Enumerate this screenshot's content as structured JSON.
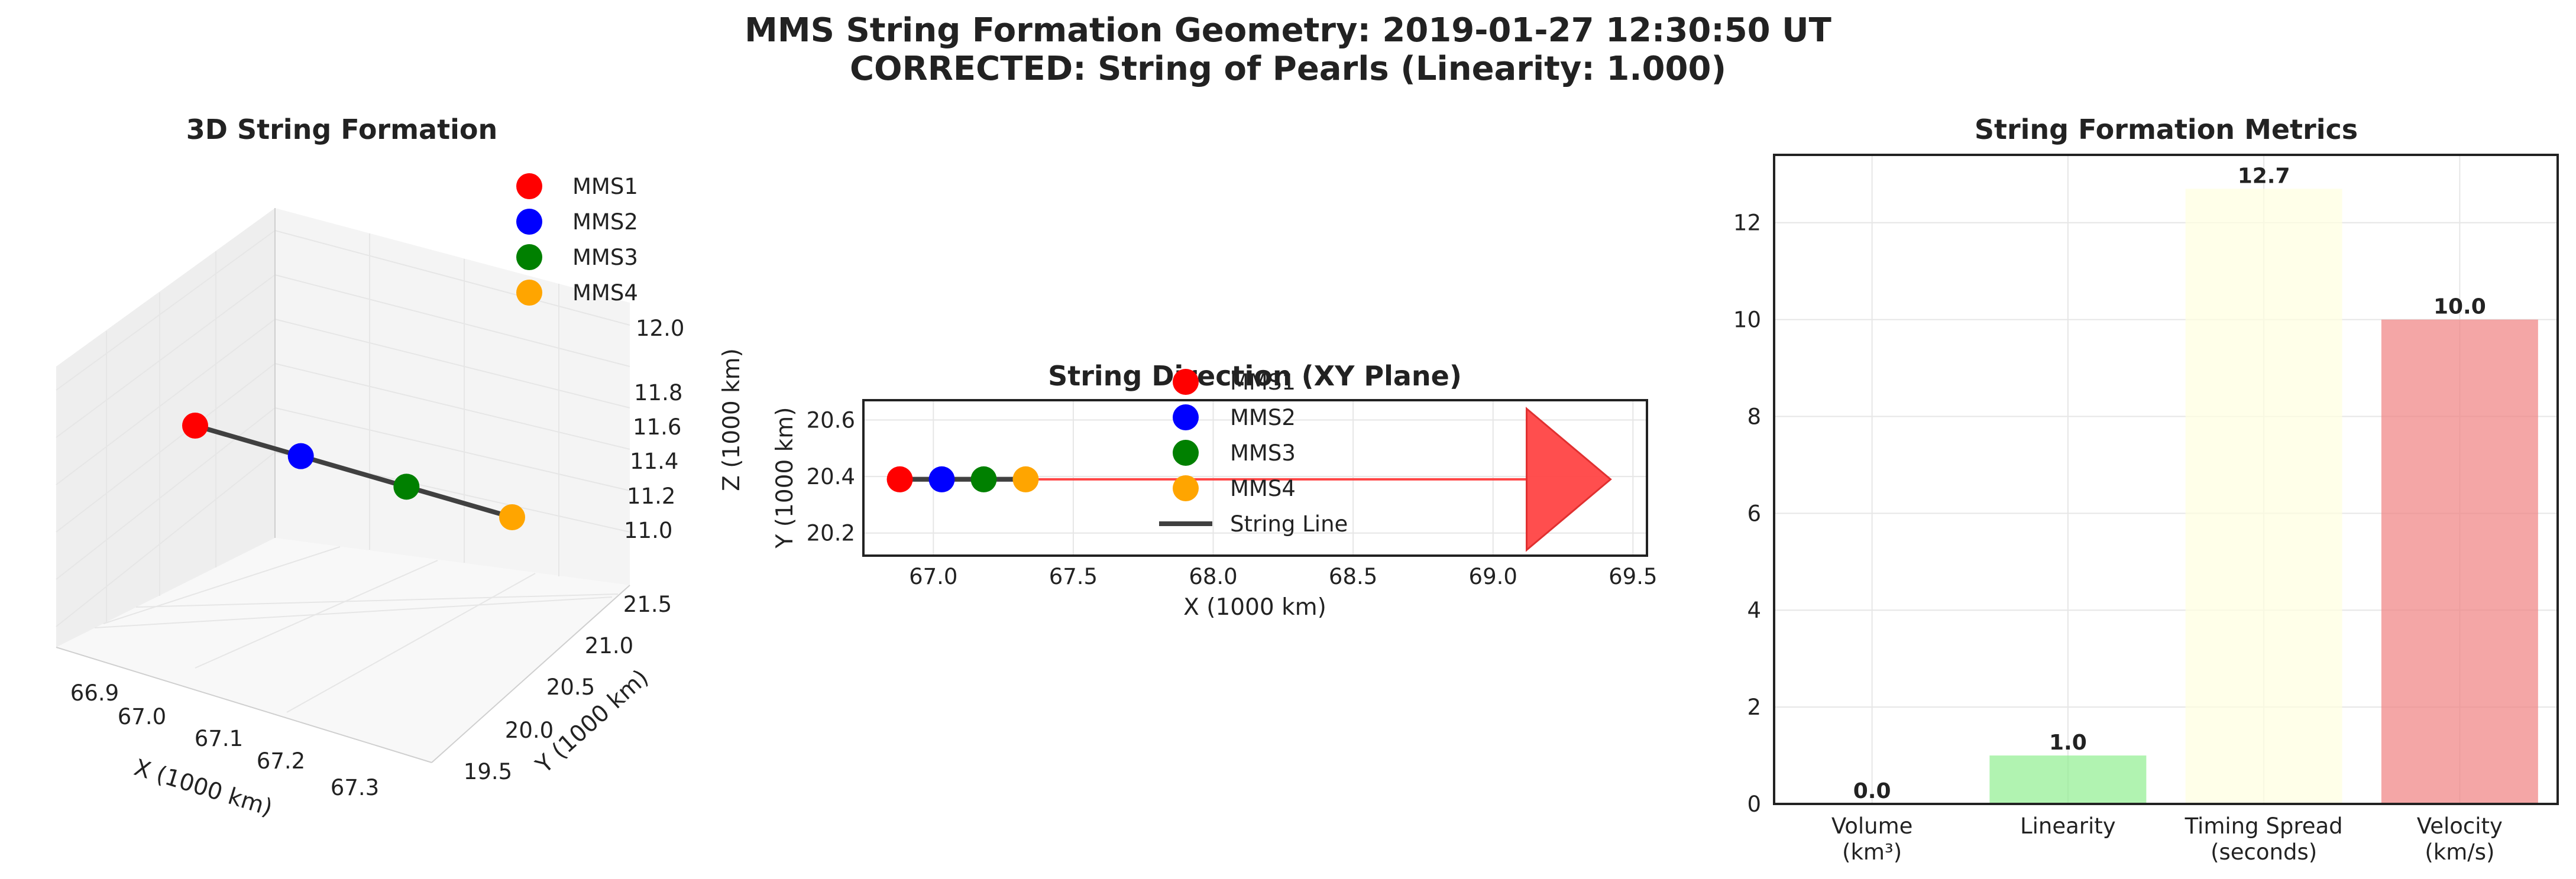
{
  "figure": {
    "title_line1": "MMS String Formation Geometry: 2019-01-27 12:30:50 UT",
    "title_line2": "CORRECTED: String of Pearls (Linearity: 1.000)"
  },
  "colors": {
    "MMS1": "#ff0000",
    "MMS2": "#0000ff",
    "MMS3": "#008000",
    "MMS4": "#ffa500",
    "string": "#404040",
    "arrow": "#ff4444"
  },
  "chart_data": [
    {
      "type": "scatter3d",
      "title": "3D String Formation",
      "xlabel": "X (1000 km)",
      "ylabel": "Y (1000 km)",
      "zlabel": "Z (1000 km)",
      "xlim": [
        66.85,
        67.38
      ],
      "ylim": [
        19.3,
        21.6
      ],
      "zlim": [
        10.9,
        12.05
      ],
      "xticks": [
        "66.9",
        "67.0",
        "67.1",
        "67.2",
        "67.3"
      ],
      "yticks": [
        "19.5",
        "20.0",
        "20.5",
        "21.0",
        "21.5"
      ],
      "zticks": [
        "11.0",
        "11.2",
        "11.4",
        "11.6",
        "11.8",
        "12.0"
      ],
      "legend": [
        "MMS1",
        "MMS2",
        "MMS3",
        "MMS4"
      ],
      "series": [
        {
          "name": "MMS1",
          "x": 66.88,
          "y": 20.39,
          "z": 11.45
        },
        {
          "name": "MMS2",
          "x": 67.03,
          "y": 20.39,
          "z": 11.42
        },
        {
          "name": "MMS3",
          "x": 67.18,
          "y": 20.39,
          "z": 11.39
        },
        {
          "name": "MMS4",
          "x": 67.33,
          "y": 20.39,
          "z": 11.36
        }
      ]
    },
    {
      "type": "scatter",
      "title": "String Direction (XY Plane)",
      "xlabel": "X (1000 km)",
      "ylabel": "Y (1000 km)",
      "xlim": [
        66.75,
        69.55
      ],
      "ylim": [
        20.12,
        20.67
      ],
      "xticks": [
        67.0,
        67.5,
        68.0,
        68.5,
        69.0,
        69.5
      ],
      "xtick_labels": [
        "67.0",
        "67.5",
        "68.0",
        "68.5",
        "69.0",
        "69.5"
      ],
      "yticks": [
        20.2,
        20.4,
        20.6
      ],
      "ytick_labels": [
        "20.2",
        "20.4",
        "20.6"
      ],
      "legend": [
        "MMS1",
        "MMS2",
        "MMS3",
        "MMS4",
        "String Line"
      ],
      "series": [
        {
          "name": "MMS1",
          "x": 66.88,
          "y": 20.39
        },
        {
          "name": "MMS2",
          "x": 67.03,
          "y": 20.39
        },
        {
          "name": "MMS3",
          "x": 67.18,
          "y": 20.39
        },
        {
          "name": "MMS4",
          "x": 67.33,
          "y": 20.39
        }
      ],
      "string_line": {
        "x": [
          66.88,
          67.33
        ],
        "y": [
          20.39,
          20.39
        ]
      },
      "arrow": {
        "x_start": 66.88,
        "x_end": 69.42,
        "y": 20.39,
        "head_start": 69.12,
        "head_half_height": 0.25
      }
    },
    {
      "type": "bar",
      "title": "String Formation Metrics",
      "categories": [
        "Volume\n(km³)",
        "Linearity",
        "Timing Spread\n(seconds)",
        "Velocity\n(km/s)"
      ],
      "values": [
        0.0,
        1.0,
        12.7,
        10.0
      ],
      "value_labels": [
        "0.0",
        "1.0",
        "12.7",
        "10.0"
      ],
      "bar_colors": [
        "#add8e6",
        "#90ee90",
        "#ffffe0",
        "#f08080"
      ],
      "ylim": [
        0,
        13.4
      ],
      "yticks": [
        0,
        2,
        4,
        6,
        8,
        10,
        12
      ],
      "ytick_labels": [
        "0",
        "2",
        "4",
        "6",
        "8",
        "10",
        "12"
      ],
      "xlabel": "",
      "ylabel": ""
    }
  ]
}
